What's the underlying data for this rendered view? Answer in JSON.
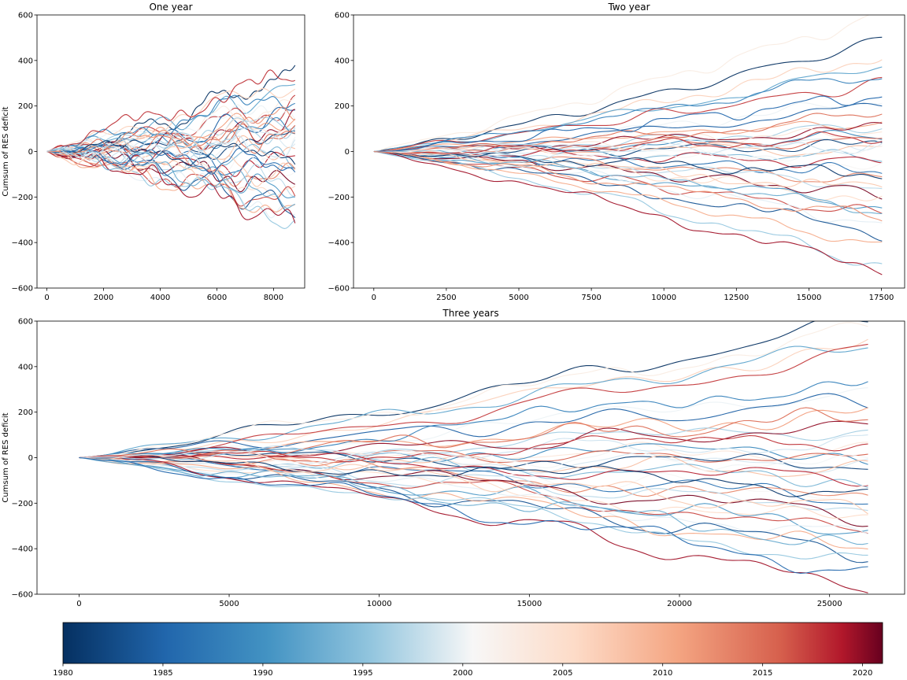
{
  "chart_data": [
    {
      "type": "line",
      "title": "One year",
      "ylabel": "Cumsum of RES deficit",
      "xlabel": "",
      "xlim": [
        -350,
        9100
      ],
      "ylim": [
        -600,
        600
      ],
      "xticks": [
        0,
        2000,
        4000,
        6000,
        8000
      ],
      "yticks": [
        -600,
        -400,
        -200,
        0,
        200,
        400,
        600
      ],
      "series_count": 42,
      "x_end": 8760,
      "series_end_values": [
        360,
        310,
        280,
        200,
        190,
        170,
        150,
        130,
        120,
        110,
        100,
        90,
        70,
        40,
        10,
        -20,
        -50,
        -70,
        -90,
        -110,
        -140,
        -150,
        -170,
        -190,
        -230,
        -250,
        -260,
        -270,
        -300,
        -320,
        230,
        260,
        60,
        20,
        -30,
        -100,
        -200,
        330,
        0,
        -60,
        140,
        95
      ]
    },
    {
      "type": "line",
      "title": "Two year",
      "ylabel": "",
      "xlabel": "",
      "xlim": [
        -700,
        18300
      ],
      "ylim": [
        -600,
        600
      ],
      "xticks": [
        0,
        2500,
        5000,
        7500,
        10000,
        12500,
        15000,
        17500
      ],
      "yticks": [
        -600,
        -400,
        -200,
        0,
        200,
        400,
        600
      ],
      "series_count": 41,
      "x_end": 17520,
      "series_end_values": [
        490,
        420,
        370,
        300,
        230,
        200,
        130,
        110,
        100,
        90,
        70,
        50,
        40,
        30,
        10,
        -20,
        -50,
        -60,
        -90,
        -130,
        -150,
        -190,
        -220,
        -240,
        -280,
        -320,
        -360,
        -420,
        -500,
        -530,
        600,
        350,
        160,
        20,
        -100,
        -170,
        -260,
        60,
        -10,
        250,
        -300
      ]
    },
    {
      "type": "line",
      "title": "Three years",
      "ylabel": "Cumsum of RES deficit",
      "xlabel": "",
      "xlim": [
        -1400,
        27500
      ],
      "ylim": [
        -600,
        600
      ],
      "xticks": [
        0,
        5000,
        10000,
        15000,
        20000,
        25000
      ],
      "yticks": [
        -600,
        -400,
        -200,
        0,
        200,
        400,
        600
      ],
      "series_count": 40,
      "x_end": 26280,
      "series_end_values": [
        600,
        520,
        500,
        460,
        310,
        250,
        200,
        140,
        130,
        40,
        20,
        0,
        -10,
        -40,
        -60,
        -90,
        -110,
        -150,
        -180,
        -200,
        -220,
        -260,
        -290,
        -310,
        -340,
        -350,
        -410,
        -420,
        -450,
        -580,
        560,
        360,
        180,
        60,
        -130,
        -240,
        -380,
        90,
        -30,
        -500
      ]
    }
  ],
  "colorbar": {
    "colormap": "RdBu_r",
    "range": [
      1980,
      2021
    ],
    "ticks": [
      "1980",
      "1985",
      "1990",
      "1995",
      "2000",
      "2005",
      "2010",
      "2015",
      "2020"
    ],
    "tick_values": [
      1980,
      1985,
      1990,
      1995,
      2000,
      2005,
      2010,
      2015,
      2020
    ]
  },
  "colors": {
    "low": "#053061",
    "mid_low": "#2166ac",
    "light_blue": "#92c5de",
    "white": "#f7f7f7",
    "light_red": "#f4a582",
    "mid_high": "#d6604d",
    "high": "#67001f"
  }
}
